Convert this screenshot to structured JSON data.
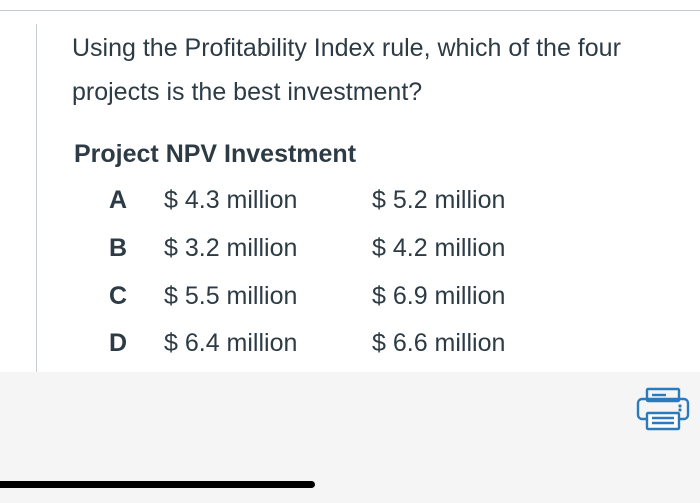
{
  "question": {
    "text": "Using the Profitability Index rule, which of the four projects is the best investment?"
  },
  "table": {
    "header": "Project NPV Investment",
    "rows": [
      {
        "project": "A",
        "npv": "$ 4.3 million",
        "investment": "$ 5.2 million"
      },
      {
        "project": "B",
        "npv": "$ 3.2 million",
        "investment": "$ 4.2 million"
      },
      {
        "project": "C",
        "npv": "$ 5.5 million",
        "investment": "$ 6.9 million"
      },
      {
        "project": "D",
        "npv": "$ 6.4 million",
        "investment": "$ 6.6 million"
      }
    ]
  },
  "toolbar": {
    "print_icon": "printer-icon",
    "accent_color": "#2b7abc"
  }
}
